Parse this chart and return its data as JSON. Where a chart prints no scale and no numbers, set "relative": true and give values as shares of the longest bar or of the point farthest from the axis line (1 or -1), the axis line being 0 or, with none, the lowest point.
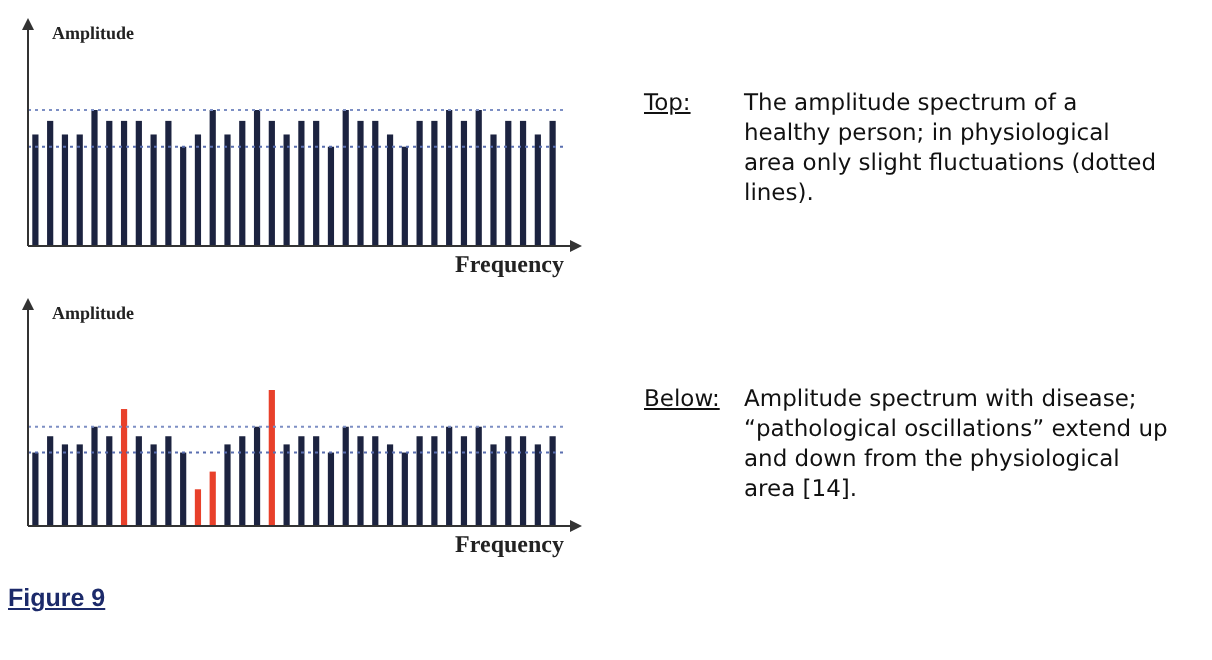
{
  "chart_data": [
    {
      "type": "bar",
      "relative": true,
      "ylabel": "Amplitude",
      "xlabel": "Frequency",
      "color": "#1c2340",
      "categories": [
        null,
        null,
        null,
        null,
        null,
        null,
        null,
        null,
        null,
        null,
        null,
        null,
        null,
        null,
        null,
        null,
        null,
        null,
        null,
        null,
        null,
        null,
        null,
        null,
        null,
        null,
        null,
        null,
        null,
        null,
        null,
        null,
        null,
        null,
        null,
        null
      ],
      "values": [
        0.82,
        0.92,
        0.82,
        0.82,
        1,
        0.92,
        0.92,
        0.92,
        0.82,
        0.92,
        0.73,
        0.82,
        1,
        0.82,
        0.92,
        1,
        0.92,
        0.82,
        0.92,
        0.92,
        0.73,
        1,
        0.92,
        0.92,
        0.82,
        0.73,
        0.92,
        0.92,
        1,
        0.92,
        1,
        0.82,
        0.92,
        0.92,
        0.82,
        0.92
      ],
      "ref_lines": [
        {
          "axis": "y",
          "value": 1,
          "color": "#7d8fc4",
          "line_style": "dotted"
        },
        {
          "axis": "y",
          "value": 0.73,
          "color": "#5a6fb0",
          "line_style": "dotted"
        }
      ],
      "annotations": [
        "Top:",
        "The amplitude spectrum of a healthy person; in physiological area only slight fluctuations (dotted lines)."
      ]
    },
    {
      "type": "bar",
      "relative": true,
      "ylabel": "Amplitude",
      "xlabel": "Frequency",
      "categories": [
        null,
        null,
        null,
        null,
        null,
        null,
        null,
        null,
        null,
        null,
        null,
        null,
        null,
        null,
        null,
        null,
        null,
        null,
        null,
        null,
        null,
        null,
        null,
        null,
        null,
        null,
        null,
        null,
        null,
        null,
        null,
        null,
        null,
        null,
        null,
        null
      ],
      "values": [
        0.54,
        0.66,
        0.6,
        0.6,
        0.73,
        0.66,
        0.86,
        0.66,
        0.6,
        0.66,
        0.54,
        0.27,
        0.4,
        0.6,
        0.66,
        0.73,
        1,
        0.6,
        0.66,
        0.66,
        0.54,
        0.73,
        0.66,
        0.66,
        0.6,
        0.54,
        0.66,
        0.66,
        0.73,
        0.66,
        0.73,
        0.6,
        0.66,
        0.66,
        0.6,
        0.66
      ],
      "colors": [
        "#1c2340",
        "#1c2340",
        "#1c2340",
        "#1c2340",
        "#1c2340",
        "#1c2340",
        "#e8402a",
        "#1c2340",
        "#1c2340",
        "#1c2340",
        "#1c2340",
        "#e8402a",
        "#e8402a",
        "#1c2340",
        "#1c2340",
        "#1c2340",
        "#e8402a",
        "#1c2340",
        "#1c2340",
        "#1c2340",
        "#1c2340",
        "#1c2340",
        "#1c2340",
        "#1c2340",
        "#1c2340",
        "#1c2340",
        "#1c2340",
        "#1c2340",
        "#1c2340",
        "#1c2340",
        "#1c2340",
        "#1c2340",
        "#1c2340",
        "#1c2340",
        "#1c2340",
        "#1c2340"
      ],
      "ref_lines": [
        {
          "axis": "y",
          "value": 0.73,
          "color": "#7d8fc4",
          "line_style": "dotted"
        },
        {
          "axis": "y",
          "value": 0.54,
          "color": "#5a6fb0",
          "line_style": "dotted"
        }
      ],
      "annotations": [
        "Below:",
        "Amplitude spectrum with disease; “pathological oscillations” extend up and down from the physiological area [14].",
        "Figure 9"
      ]
    }
  ]
}
